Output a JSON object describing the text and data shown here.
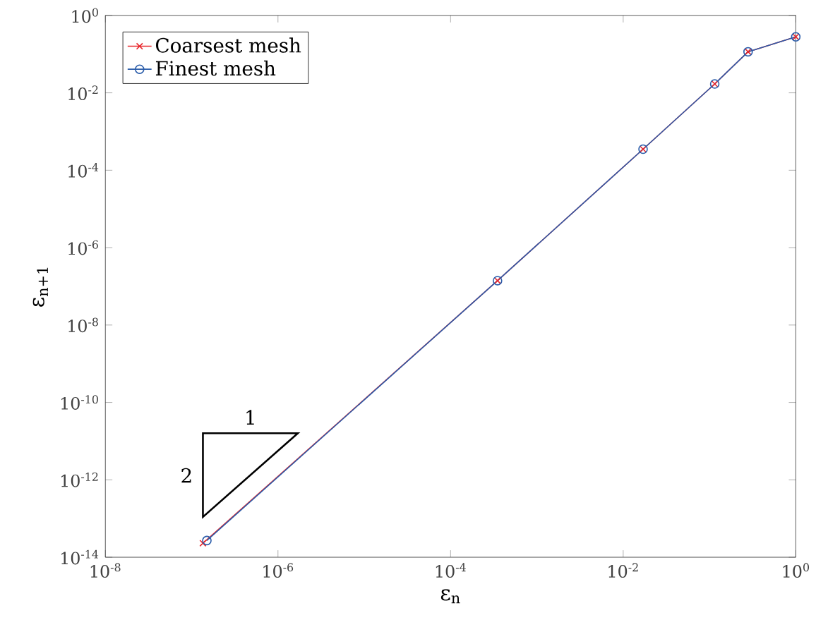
{
  "chart_data": {
    "type": "line",
    "xlabel": "ε$_{n}$",
    "ylabel": "ε$_{n+1}$",
    "x": [
      1.5e-07,
      0.00035,
      0.017,
      0.115,
      0.28,
      1
    ],
    "series": [
      {
        "name": "Coarsest mesh",
        "color": "#e8262b",
        "marker": "cross",
        "x": [
          1.35e-07,
          0.00035,
          0.017,
          0.115,
          0.28,
          1
        ],
        "values": [
          2.3e-14,
          1.4e-07,
          0.00035,
          0.017,
          0.115,
          0.28
        ]
      },
      {
        "name": "Finest mesh",
        "color": "#2a5caa",
        "marker": "circle",
        "values": [
          2.7e-14,
          1.4e-07,
          0.00035,
          0.017,
          0.115,
          0.28
        ]
      }
    ],
    "log": "xy",
    "xlim": [
      1e-08,
      1
    ],
    "ylim": [
      1e-14,
      1
    ],
    "xticks": [
      {
        "value": 1e-08,
        "label": "10$^{-8}$"
      },
      {
        "value": 1e-06,
        "label": "10$^{-6}$"
      },
      {
        "value": 0.0001,
        "label": "10$^{-4}$"
      },
      {
        "value": 0.01,
        "label": "10$^{-2}$"
      },
      {
        "value": 1,
        "label": "10$^{0}$"
      }
    ],
    "yticks": [
      {
        "value": 1e-14,
        "label": "10$^{-14}$"
      },
      {
        "value": 1e-12,
        "label": "10$^{-12}$"
      },
      {
        "value": 1e-10,
        "label": "10$^{-10}$"
      },
      {
        "value": 1e-08,
        "label": "10$^{-8}$"
      },
      {
        "value": 1e-06,
        "label": "10$^{-6}$"
      },
      {
        "value": 0.0001,
        "label": "10$^{-4}$"
      },
      {
        "value": 0.01,
        "label": "10$^{-2}$"
      },
      {
        "value": 1,
        "label": "10$^{0}$"
      }
    ],
    "grid": false,
    "legend": "top left",
    "line_style": "solid",
    "annotations": [
      "1",
      "2"
    ]
  }
}
